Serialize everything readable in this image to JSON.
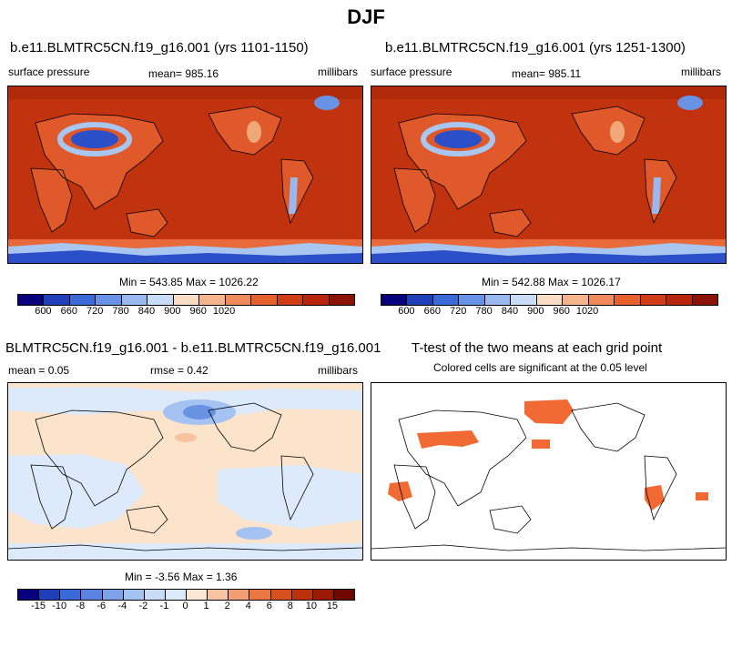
{
  "title": "DJF",
  "panels": [
    {
      "title": "b.e11.BLMTRC5CN.f19_g16.001 (yrs 1101-1150)",
      "left": "surface pressure",
      "center": "mean= 985.16",
      "right": "millibars",
      "stats": "Min = 543.85 Max = 1026.22"
    },
    {
      "title": "b.e11.BLMTRC5CN.f19_g16.001 (yrs 1251-1300)",
      "left": "surface pressure",
      "center": "mean= 985.11",
      "right": "millibars",
      "stats": "Min = 542.88 Max = 1026.17"
    },
    {
      "title": "BLMTRC5CN.f19_g16.001 - b.e11.BLMTRC5CN.f19_g16.001",
      "left": "mean =   0.05",
      "center": "rmse =   0.42",
      "right": "millibars",
      "stats": "Min =  -3.56 Max =   1.36"
    },
    {
      "title": "T-test of the two means at each grid point",
      "subtitle": "Colored cells are significant at the 0.05 level"
    }
  ],
  "colorbar_abs": {
    "labels": [
      "600",
      "660",
      "720",
      "780",
      "840",
      "900",
      "960",
      "1020"
    ],
    "colors": [
      "#08007a",
      "#1f3fb8",
      "#3a6ad8",
      "#6892e8",
      "#98b8ef",
      "#c8dcf7",
      "#f9dcc4",
      "#f6b48a",
      "#f08a5a",
      "#e6602e",
      "#d03c16",
      "#b8240c",
      "#8c1204"
    ]
  },
  "colorbar_diff": {
    "labels": [
      "-15",
      "-10",
      "-8",
      "-6",
      "-4",
      "-2",
      "-1",
      "0",
      "1",
      "2",
      "4",
      "6",
      "8",
      "10",
      "15"
    ],
    "colors": [
      "#08007a",
      "#1f3fb8",
      "#3a6ad8",
      "#5a82e0",
      "#7ea2ea",
      "#a4c2f2",
      "#c8dcf7",
      "#ddeafb",
      "#fbe6d4",
      "#f7c3a0",
      "#f29e72",
      "#ea7640",
      "#d8501e",
      "#bc300c",
      "#9a1a04",
      "#700800"
    ]
  },
  "colors": {
    "ocean": "#c0330e",
    "land_hi": "#e0592a",
    "low": "#2a4fc8",
    "mid": "#a8c6f0",
    "pale": "#fbe3cc",
    "sig": "#f26a33"
  }
}
